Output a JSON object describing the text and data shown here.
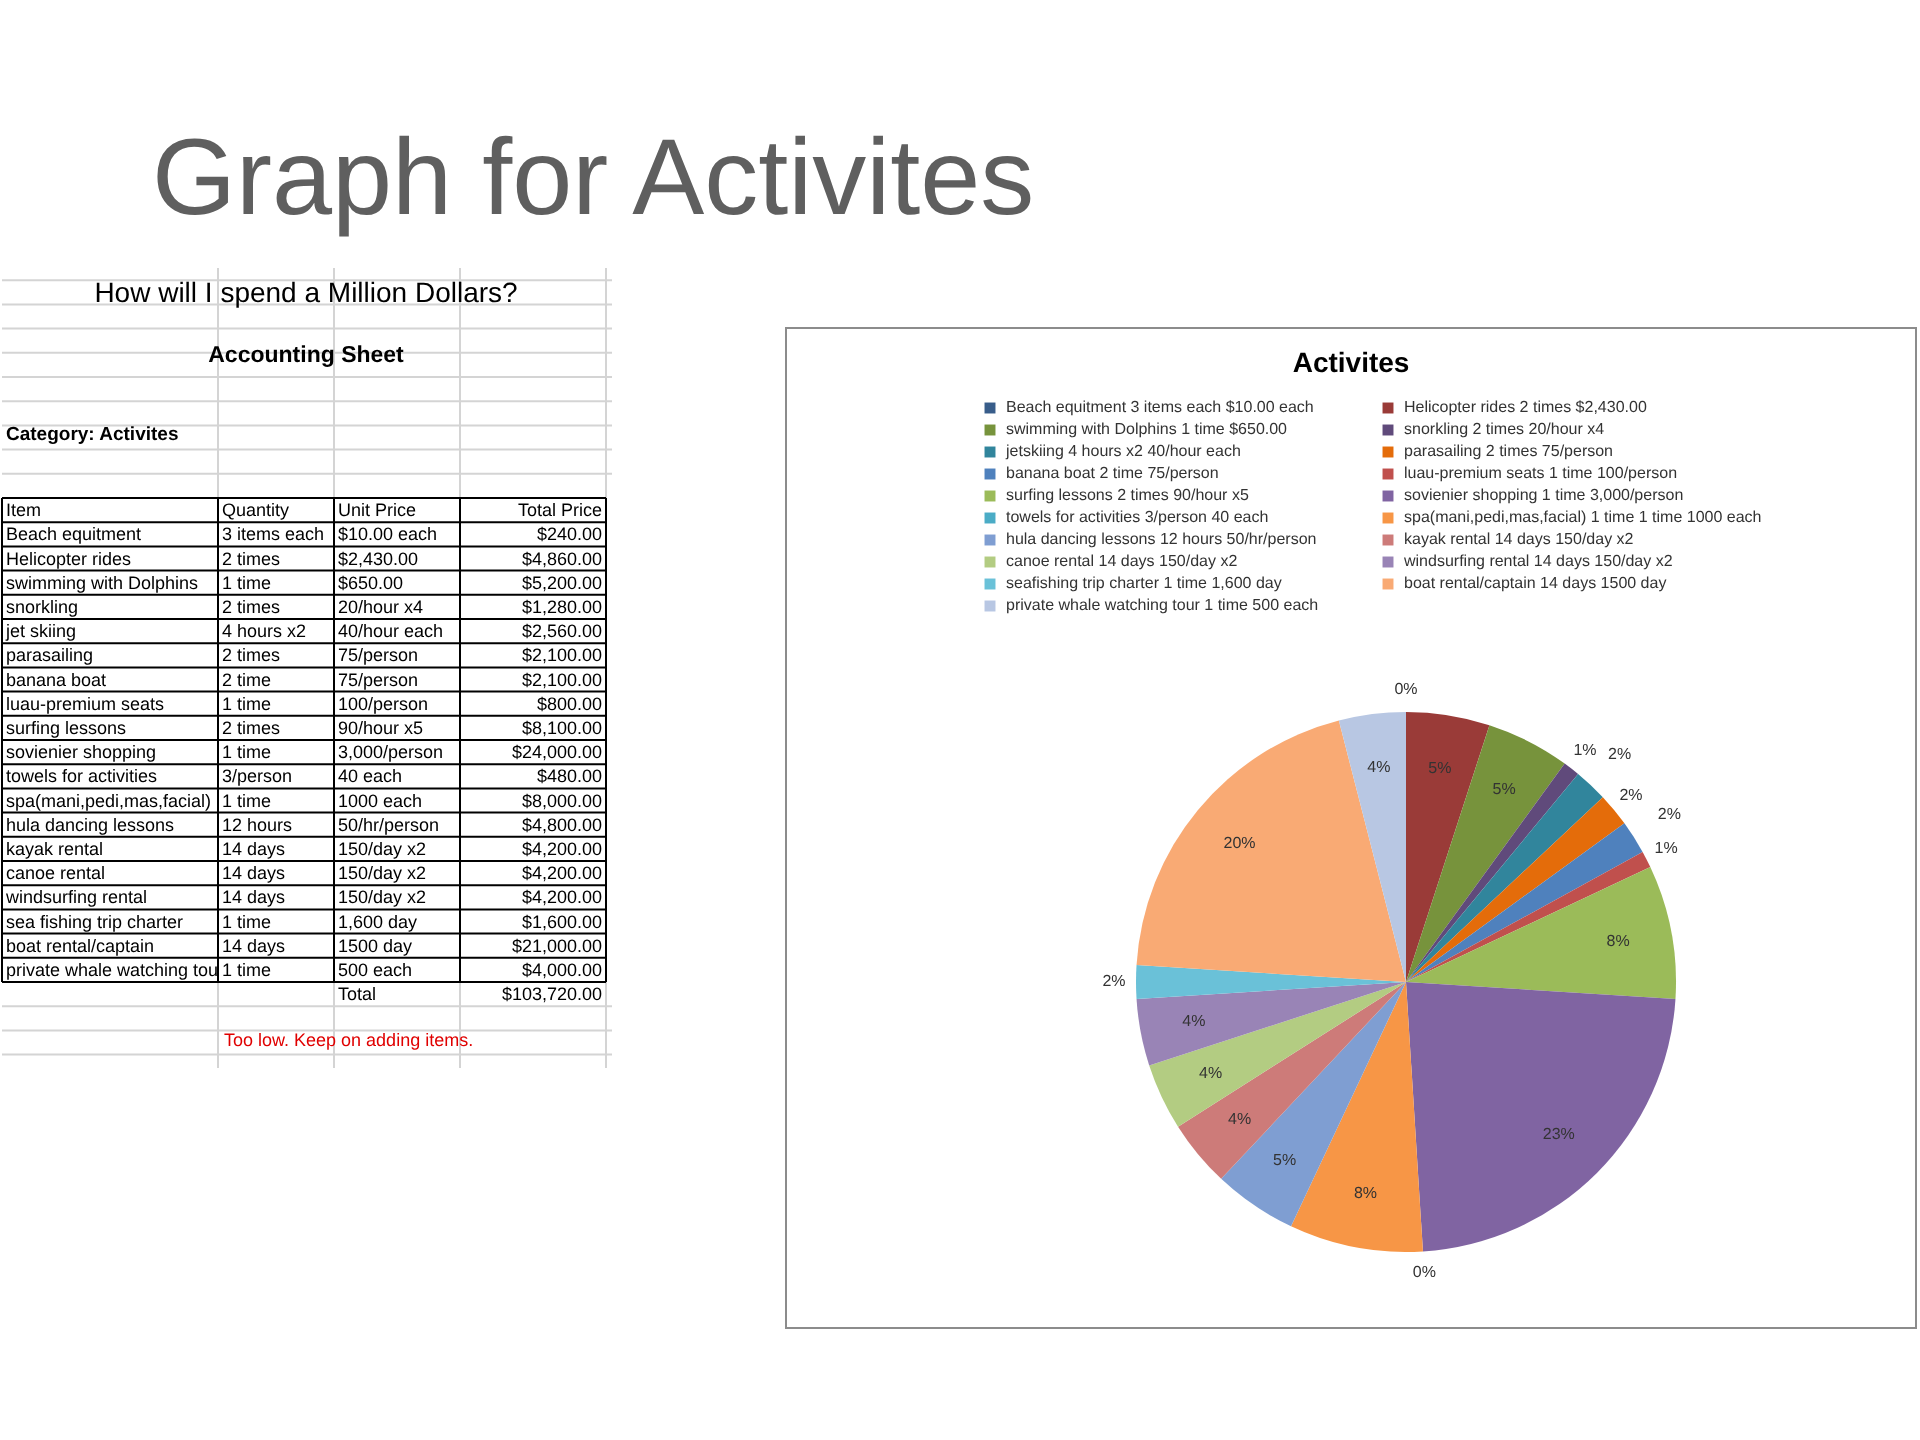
{
  "chart_data": [
    {
      "type": "other",
      "title": "Graph for Activites"
    },
    {
      "type": "other",
      "title": "How will I spend a Million Dollars?",
      "subtitle": "Accounting Sheet",
      "annotations": [
        "Category: Activites",
        "Item",
        "Quantity",
        "Unit Price",
        "Total Price",
        "Beach equitment",
        "3 items each",
        "$10.00 each",
        "$240.00",
        "Helicopter rides",
        "2 times",
        "$2,430.00",
        "$4,860.00",
        "swimming with Dolphins",
        "1 time",
        "$650.00",
        "$5,200.00",
        "snorkling",
        "2 times",
        "20/hour x4",
        "$1,280.00",
        "jet skiing",
        "4 hours x2",
        "40/hour each",
        "$2,560.00",
        "parasailing",
        "2 times",
        "75/person",
        "$2,100.00",
        "banana boat",
        "2 time",
        "75/person",
        "$2,100.00",
        "luau-premium seats",
        "1 time",
        "100/person",
        "$800.00",
        "surfing lessons",
        "2 times",
        "90/hour x5",
        "$8,100.00",
        "sovienier shopping",
        "1 time",
        "3,000/person",
        "$24,000.00",
        "towels for activities",
        "3/person",
        "40 each",
        "$480.00",
        "spa(mani,pedi,mas,facial)",
        "1 time",
        "1000 each",
        "$8,000.00",
        "hula dancing lessons",
        "12 hours",
        "50/hr/person",
        "$4,800.00",
        "kayak rental",
        "14 days",
        "150/day x2",
        "$4,200.00",
        "canoe rental",
        "14 days",
        "150/day x2",
        "$4,200.00",
        "windsurfing rental",
        "14 days",
        "150/day x2",
        "$4,200.00",
        "sea fishing trip charter",
        "1 time",
        "1,600 day",
        "$1,600.00",
        "boat rental/captain",
        "14 days",
        "1500 day",
        "$21,000.00",
        "private whale watching tou",
        "1 time",
        "500 each",
        "$4,000.00",
        "Total",
        "$103,720.00",
        "Too low. Keep on adding items."
      ]
    },
    {
      "type": "pie",
      "title": "Activites",
      "categories": [
        "Beach equitment 3 items each $10.00 each",
        "Helicopter rides 2 times $2,430.00",
        "swimming with Dolphins 1 time $650.00",
        "snorkling 2 times 20/hour x4",
        "jetskiing 4 hours x2 40/hour each",
        "parasailing 2 times 75/person",
        "banana boat 2 time 75/person",
        "luau-premium seats 1 time 100/person",
        "surfing lessons 2 times 90/hour x5",
        "sovienier shopping 1 time 3,000/person",
        "towels for activities 3/person 40 each",
        "spa(mani,pedi,mas,facial) 1 time 1 time 1000 each",
        "hula dancing lessons 12 hours 50/hr/person",
        "kayak rental 14 days 150/day x2",
        "canoe rental 14 days 150/day x2",
        "windsurfing rental 14 days 150/day x2",
        "seafishing trip charter 1 time 1,600 day",
        "boat rental/captain 14 days 1500 day",
        "private whale watching tour 1 time 500 each"
      ],
      "values": [
        0,
        5,
        5,
        1,
        2,
        2,
        2,
        1,
        8,
        23,
        0,
        8,
        5,
        4,
        4,
        4,
        2,
        20,
        4
      ],
      "colors": [
        "#385d8a",
        "#9a3b38",
        "#77933c",
        "#604a7b",
        "#31859c",
        "#e46c0a",
        "#4f81bd",
        "#c0504d",
        "#9bbb59",
        "#8064a2",
        "#4bacc6",
        "#f79646",
        "#7f9ed2",
        "#cd7b79",
        "#b3cc82",
        "#9984b6",
        "#6ac1d8",
        "#f9aa74",
        "#b8c7e3"
      ],
      "value_labels": [
        "0%",
        "5%",
        "5%",
        "1%",
        "2%",
        "2%",
        "2%",
        "1%",
        "8%",
        "23%",
        "0%",
        "8%",
        "5%",
        "4%",
        "4%",
        "4%",
        "2%",
        "20%",
        "4%"
      ],
      "legend": "top"
    }
  ]
}
